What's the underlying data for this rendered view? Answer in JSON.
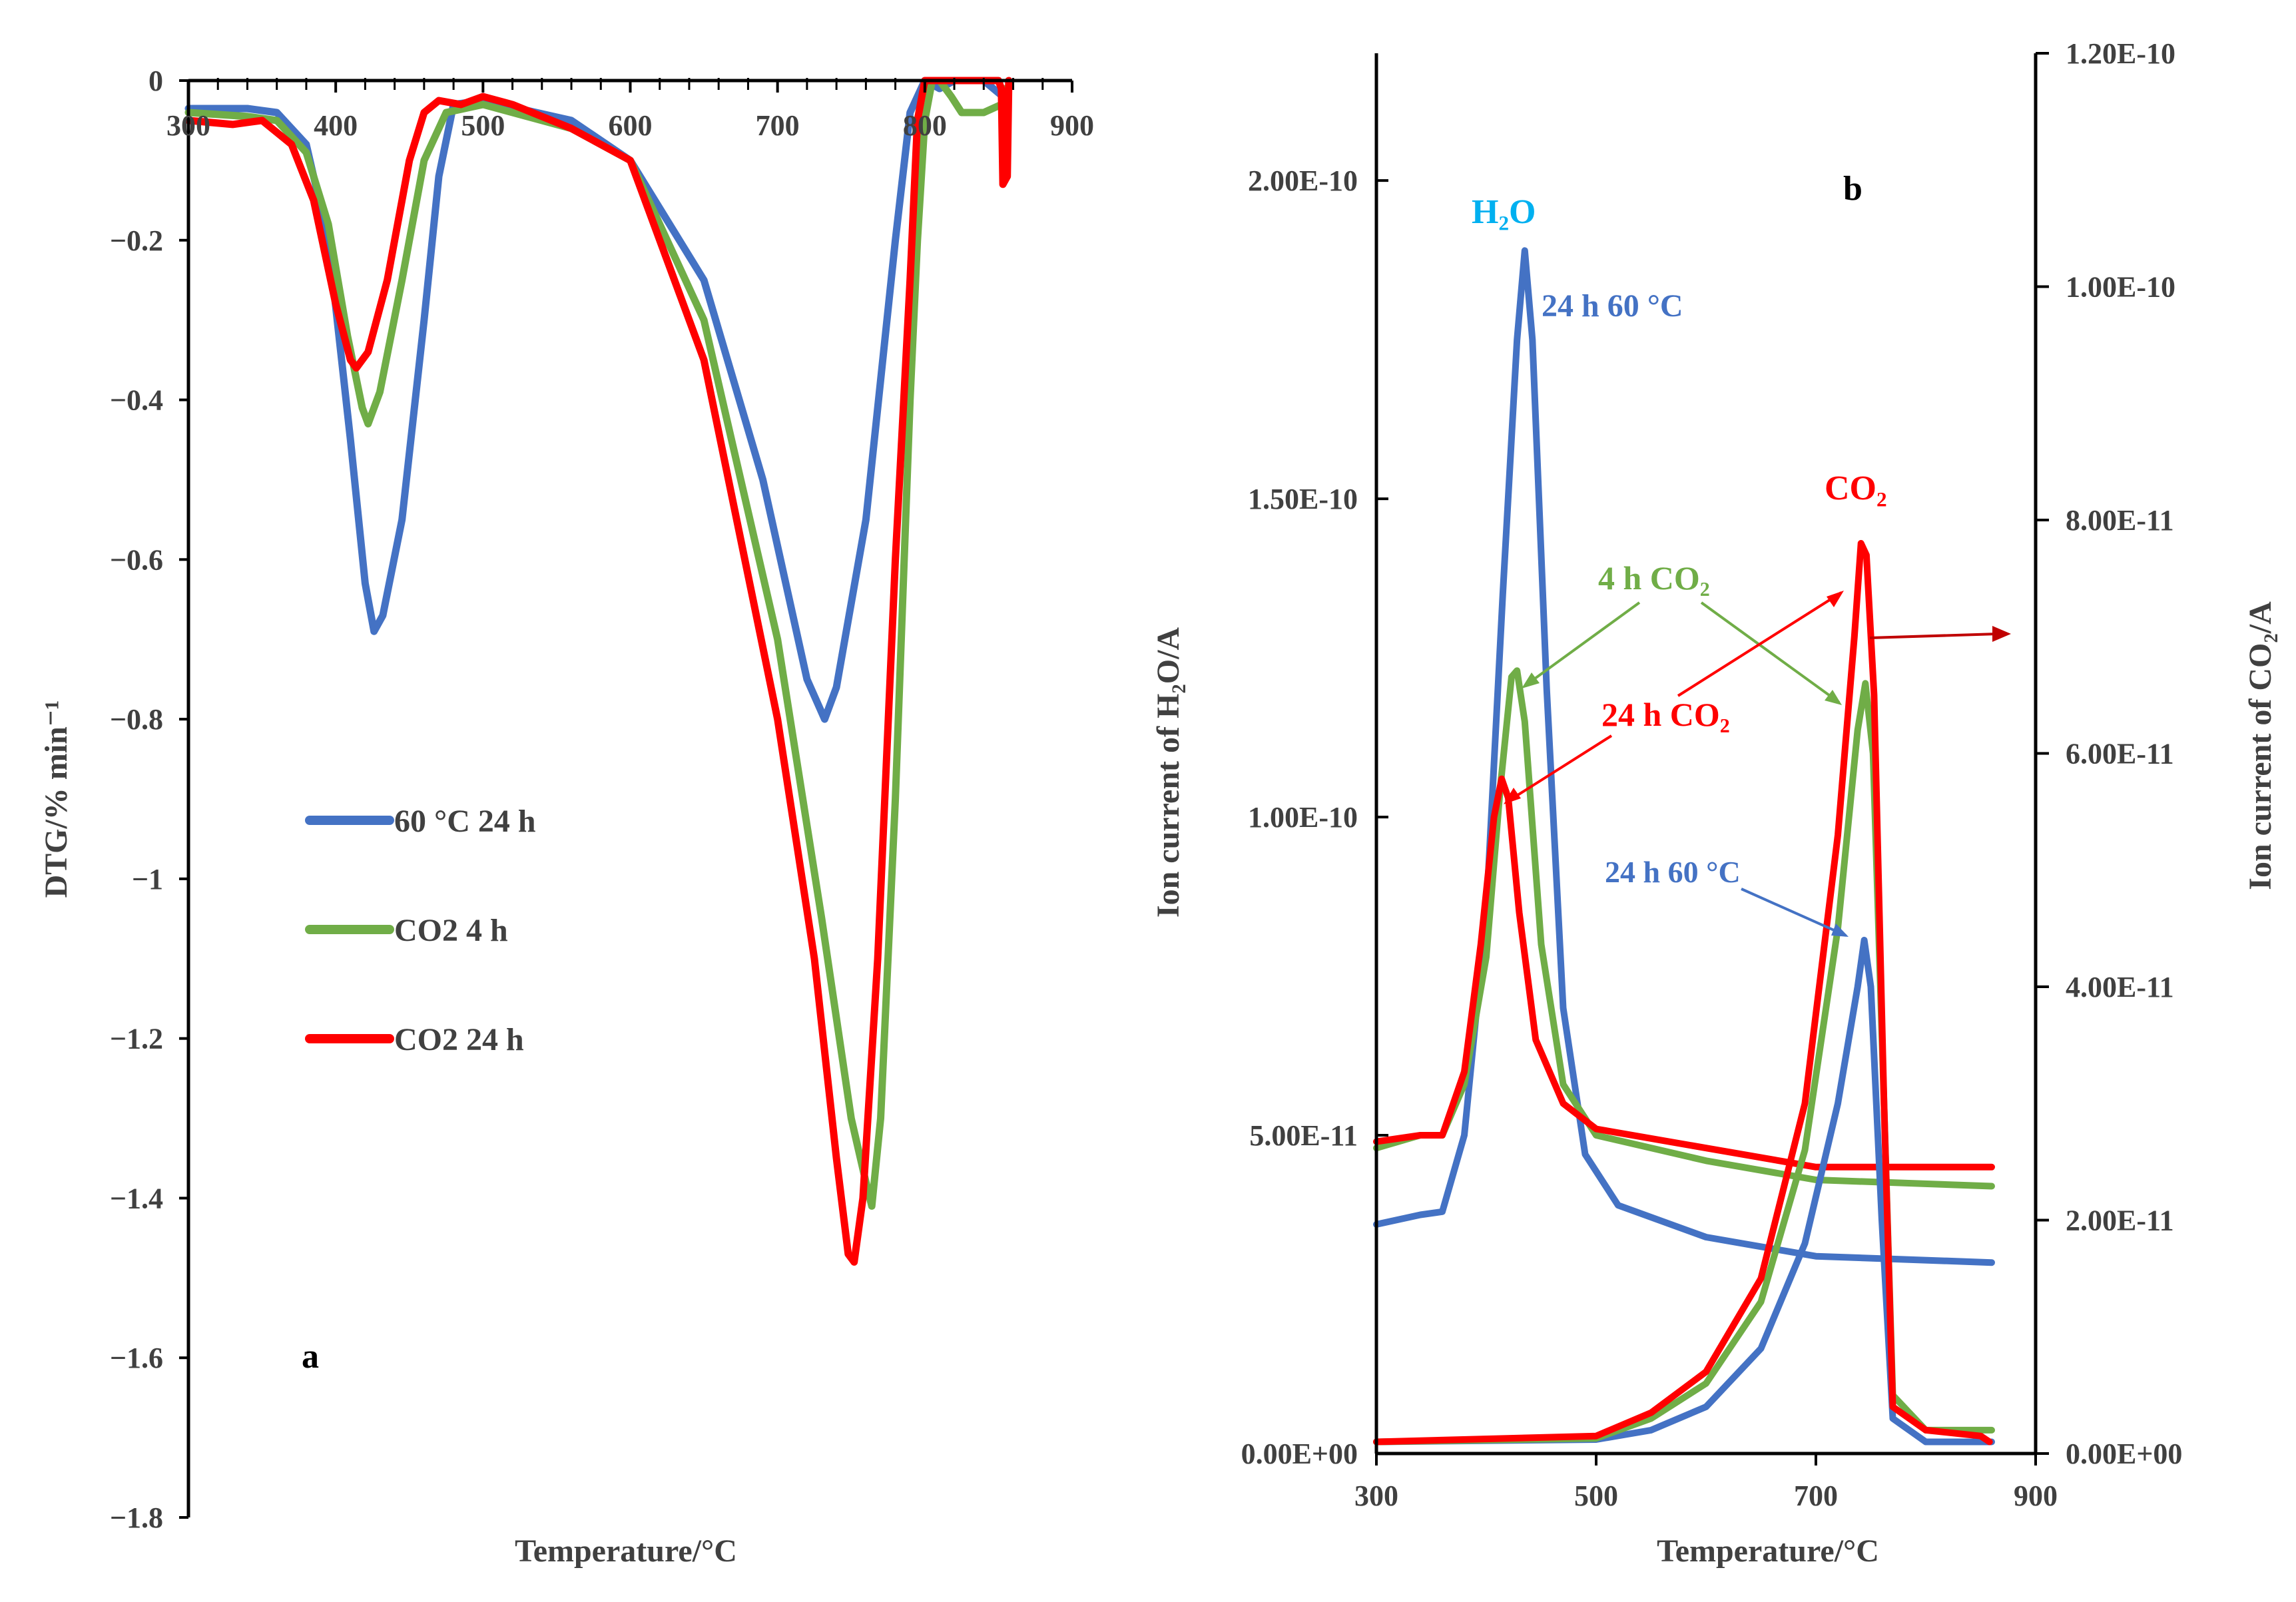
{
  "chart_data": [
    {
      "panel_label": "a",
      "type": "line",
      "xlabel": "Temperature/°C",
      "ylabel": "DTG/% min⁻¹",
      "xlim": [
        300,
        900
      ],
      "ylim": [
        -1.8,
        0
      ],
      "x_ticks": [
        "300",
        "400",
        "500",
        "600",
        "700",
        "800",
        "900"
      ],
      "y_ticks": [
        "0",
        "−0.2",
        "−0.4",
        "−0.6",
        "−0.8",
        "−1",
        "−1.2",
        "−1.4",
        "−1.6",
        "−1.8"
      ],
      "legend": [
        "60 °C 24 h",
        "CO2 4 h",
        "CO2 24 h"
      ],
      "series": [
        {
          "name": "60 °C 24 h",
          "color": "#4472C4",
          "points": [
            [
              300,
              -0.035
            ],
            [
              340,
              -0.035
            ],
            [
              360,
              -0.04
            ],
            [
              380,
              -0.08
            ],
            [
              395,
              -0.2
            ],
            [
              410,
              -0.45
            ],
            [
              420,
              -0.63
            ],
            [
              426,
              -0.69
            ],
            [
              432,
              -0.67
            ],
            [
              445,
              -0.55
            ],
            [
              460,
              -0.3
            ],
            [
              470,
              -0.12
            ],
            [
              480,
              -0.03
            ],
            [
              500,
              -0.025
            ],
            [
              560,
              -0.05
            ],
            [
              600,
              -0.1
            ],
            [
              650,
              -0.25
            ],
            [
              690,
              -0.5
            ],
            [
              720,
              -0.75
            ],
            [
              732,
              -0.8
            ],
            [
              740,
              -0.76
            ],
            [
              760,
              -0.55
            ],
            [
              780,
              -0.2
            ],
            [
              790,
              -0.04
            ],
            [
              800,
              0.0
            ],
            [
              810,
              -0.01
            ],
            [
              820,
              0.0
            ],
            [
              840,
              0.0
            ],
            [
              853,
              -0.02
            ]
          ]
        },
        {
          "name": "CO2 4 h",
          "color": "#70AD47",
          "points": [
            [
              300,
              -0.04
            ],
            [
              340,
              -0.045
            ],
            [
              360,
              -0.05
            ],
            [
              380,
              -0.09
            ],
            [
              395,
              -0.18
            ],
            [
              408,
              -0.32
            ],
            [
              418,
              -0.41
            ],
            [
              422,
              -0.43
            ],
            [
              430,
              -0.39
            ],
            [
              445,
              -0.25
            ],
            [
              460,
              -0.1
            ],
            [
              475,
              -0.04
            ],
            [
              500,
              -0.03
            ],
            [
              560,
              -0.06
            ],
            [
              600,
              -0.1
            ],
            [
              650,
              -0.3
            ],
            [
              700,
              -0.7
            ],
            [
              730,
              -1.05
            ],
            [
              750,
              -1.3
            ],
            [
              760,
              -1.38
            ],
            [
              764,
              -1.41
            ],
            [
              770,
              -1.3
            ],
            [
              780,
              -0.9
            ],
            [
              790,
              -0.4
            ],
            [
              795,
              -0.2
            ],
            [
              800,
              -0.05
            ],
            [
              805,
              0.0
            ],
            [
              810,
              0.0
            ],
            [
              818,
              -0.02
            ],
            [
              825,
              -0.04
            ],
            [
              840,
              -0.04
            ],
            [
              852,
              -0.03
            ],
            [
              855,
              -0.01
            ]
          ]
        },
        {
          "name": "CO2 24 h",
          "color": "#FF0000",
          "points": [
            [
              300,
              -0.05
            ],
            [
              330,
              -0.055
            ],
            [
              350,
              -0.05
            ],
            [
              370,
              -0.08
            ],
            [
              385,
              -0.15
            ],
            [
              400,
              -0.28
            ],
            [
              410,
              -0.35
            ],
            [
              414,
              -0.36
            ],
            [
              422,
              -0.34
            ],
            [
              435,
              -0.25
            ],
            [
              450,
              -0.1
            ],
            [
              460,
              -0.04
            ],
            [
              470,
              -0.025
            ],
            [
              485,
              -0.03
            ],
            [
              500,
              -0.02
            ],
            [
              520,
              -0.03
            ],
            [
              560,
              -0.06
            ],
            [
              600,
              -0.1
            ],
            [
              650,
              -0.35
            ],
            [
              700,
              -0.8
            ],
            [
              725,
              -1.1
            ],
            [
              740,
              -1.35
            ],
            [
              748,
              -1.47
            ],
            [
              752,
              -1.48
            ],
            [
              758,
              -1.4
            ],
            [
              768,
              -1.1
            ],
            [
              780,
              -0.6
            ],
            [
              790,
              -0.25
            ],
            [
              795,
              -0.05
            ],
            [
              800,
              0.0
            ],
            [
              810,
              0.0
            ],
            [
              830,
              0.0
            ],
            [
              850,
              0.0
            ],
            [
              852,
              -0.01
            ],
            [
              853,
              -0.13
            ],
            [
              856,
              -0.12
            ],
            [
              857,
              0.0
            ]
          ]
        }
      ]
    },
    {
      "panel_label": "b",
      "type": "line",
      "xlabel": "Temperature/°C",
      "ylabel_left": "Ion current of H₂O/A",
      "ylabel_right": "Ion current of CO₂/A",
      "xlim": [
        300,
        900
      ],
      "ylim_left": [
        0,
        2.2e-10
      ],
      "ylim_right": [
        0,
        1.2e-10
      ],
      "x_ticks": [
        "300",
        "500",
        "700",
        "900"
      ],
      "y_ticks_left": [
        "0.00E+00",
        "5.00E-11",
        "1.00E-10",
        "1.50E-10",
        "2.00E-10"
      ],
      "y_ticks_right": [
        "0.00E+00",
        "2.00E-11",
        "4.00E-11",
        "6.00E-11",
        "8.00E-11",
        "1.00E-10",
        "1.20E-10"
      ],
      "annotations": {
        "h2o_label": "H₂O",
        "co2_label": "CO₂",
        "blue_h2o_label": "24 h 60 °C",
        "green_label": "4 h CO₂",
        "red_label": "24 h CO₂",
        "blue_co2_label": "24 h 60 °C"
      },
      "series": [
        {
          "name": "24 h 60 °C (H₂O)",
          "color": "#4472C4",
          "axis": "left",
          "points": [
            [
              300,
              3.6e-11
            ],
            [
              340,
              3.75e-11
            ],
            [
              360,
              3.8e-11
            ],
            [
              380,
              5e-11
            ],
            [
              400,
              8.5e-11
            ],
            [
              415,
              1.35e-10
            ],
            [
              428,
              1.75e-10
            ],
            [
              435,
              1.89e-10
            ],
            [
              442,
              1.75e-10
            ],
            [
              455,
              1.2e-10
            ],
            [
              470,
              7e-11
            ],
            [
              490,
              4.7e-11
            ],
            [
              520,
              3.9e-11
            ],
            [
              600,
              3.4e-11
            ],
            [
              700,
              3.1e-11
            ],
            [
              860,
              3e-11
            ]
          ]
        },
        {
          "name": "4 h CO₂ (H₂O)",
          "color": "#70AD47",
          "axis": "left",
          "points": [
            [
              300,
              4.8e-11
            ],
            [
              340,
              5e-11
            ],
            [
              360,
              5e-11
            ],
            [
              380,
              5.8e-11
            ],
            [
              400,
              7.8e-11
            ],
            [
              413,
              1.05e-10
            ],
            [
              423,
              1.22e-10
            ],
            [
              428,
              1.23e-10
            ],
            [
              435,
              1.15e-10
            ],
            [
              450,
              8e-11
            ],
            [
              470,
              5.8e-11
            ],
            [
              500,
              5e-11
            ],
            [
              600,
              4.6e-11
            ],
            [
              700,
              4.3e-11
            ],
            [
              860,
              4.2e-11
            ]
          ]
        },
        {
          "name": "24 h CO₂ (H₂O)",
          "color": "#FF0000",
          "axis": "left",
          "points": [
            [
              300,
              4.9e-11
            ],
            [
              340,
              5e-11
            ],
            [
              360,
              5e-11
            ],
            [
              380,
              6e-11
            ],
            [
              395,
              8e-11
            ],
            [
              407,
              1e-10
            ],
            [
              414,
              1.06e-10
            ],
            [
              420,
              1.03e-10
            ],
            [
              430,
              8.5e-11
            ],
            [
              445,
              6.5e-11
            ],
            [
              470,
              5.5e-11
            ],
            [
              500,
              5.1e-11
            ],
            [
              600,
              4.8e-11
            ],
            [
              700,
              4.5e-11
            ],
            [
              800,
              4.5e-11
            ],
            [
              860,
              4.5e-11
            ]
          ]
        },
        {
          "name": "24 h 60 °C (CO₂)",
          "color": "#4472C4",
          "axis": "right",
          "points": [
            [
              300,
              1e-12
            ],
            [
              500,
              1.2e-12
            ],
            [
              550,
              2e-12
            ],
            [
              600,
              4e-12
            ],
            [
              650,
              9e-12
            ],
            [
              690,
              1.8e-11
            ],
            [
              720,
              3e-11
            ],
            [
              738,
              4e-11
            ],
            [
              744,
              4.4e-11
            ],
            [
              750,
              4e-11
            ],
            [
              760,
              2e-11
            ],
            [
              770,
              3e-12
            ],
            [
              800,
              1e-12
            ],
            [
              860,
              1e-12
            ]
          ]
        },
        {
          "name": "4 h CO₂ (CO₂)",
          "color": "#70AD47",
          "axis": "right",
          "points": [
            [
              300,
              1e-12
            ],
            [
              500,
              1.3e-12
            ],
            [
              550,
              3e-12
            ],
            [
              600,
              6e-12
            ],
            [
              650,
              1.3e-11
            ],
            [
              690,
              2.6e-11
            ],
            [
              720,
              4.5e-11
            ],
            [
              738,
              6.2e-11
            ],
            [
              745,
              6.6e-11
            ],
            [
              752,
              6e-11
            ],
            [
              762,
              3e-11
            ],
            [
              770,
              5e-12
            ],
            [
              800,
              2e-12
            ],
            [
              860,
              2e-12
            ]
          ]
        },
        {
          "name": "24 h CO₂ (CO₂)",
          "color": "#FF0000",
          "axis": "right",
          "points": [
            [
              300,
              1e-12
            ],
            [
              500,
              1.5e-12
            ],
            [
              550,
              3.5e-12
            ],
            [
              600,
              7e-12
            ],
            [
              650,
              1.5e-11
            ],
            [
              690,
              3e-11
            ],
            [
              720,
              5.3e-11
            ],
            [
              735,
              7e-11
            ],
            [
              741,
              7.8e-11
            ],
            [
              746,
              7.7e-11
            ],
            [
              753,
              6.5e-11
            ],
            [
              762,
              3e-11
            ],
            [
              770,
              4e-12
            ],
            [
              800,
              2e-12
            ],
            [
              850,
              1.5e-12
            ],
            [
              858,
              1e-12
            ]
          ]
        }
      ]
    }
  ]
}
